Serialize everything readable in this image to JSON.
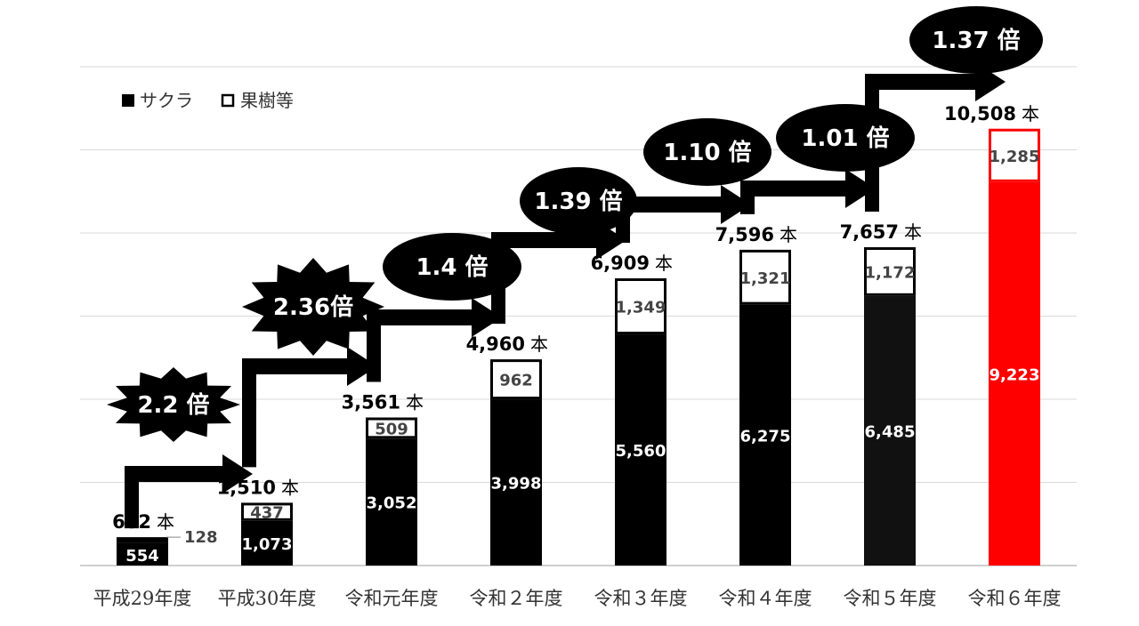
{
  "chart_data": {
    "type": "bar",
    "stacked": true,
    "categories": [
      "平成29年度",
      "平成30年度",
      "令和元年度",
      "令和２年度",
      "令和３年度",
      "令和４年度",
      "令和５年度",
      "令和６年度"
    ],
    "series": [
      {
        "name": "サクラ",
        "values": [
          554,
          1073,
          3052,
          3998,
          5560,
          6275,
          6485,
          9223
        ]
      },
      {
        "name": "果樹等",
        "values": [
          128,
          437,
          509,
          962,
          1349,
          1321,
          1172,
          1285
        ]
      }
    ],
    "series_labels": [
      [
        "554",
        "1,073",
        "3,052",
        "3,998",
        "5,560",
        "6,275",
        "6,485",
        "9,223"
      ],
      [
        "128",
        "437",
        "509",
        "962",
        "1,349",
        "1,321",
        "1,172",
        "1,285"
      ]
    ],
    "totals": [
      682,
      1510,
      3561,
      4960,
      6909,
      7596,
      7657,
      10508
    ],
    "total_labels": [
      "682",
      "1,510",
      "3,561",
      "4,960",
      "6,909",
      "7,596",
      "7,657",
      "10,508"
    ],
    "unit": "本",
    "growth_labels": [
      "2.2 倍",
      "2.36倍",
      "1.4 倍",
      "1.39 倍",
      "1.10 倍",
      "1.01 倍",
      "1.37 倍"
    ],
    "legend": {
      "items": [
        "サクラ",
        "果樹等"
      ],
      "position": "top-left"
    },
    "ylim": [
      0,
      12000
    ],
    "grid": true,
    "title": "",
    "xlabel": "",
    "ylabel": "",
    "colors": {
      "sakura": "#000000",
      "fruit": "#ffffff",
      "highlight": "#ff0000",
      "grid": "#d9d9d9",
      "axis": "#bfbfbf"
    }
  }
}
